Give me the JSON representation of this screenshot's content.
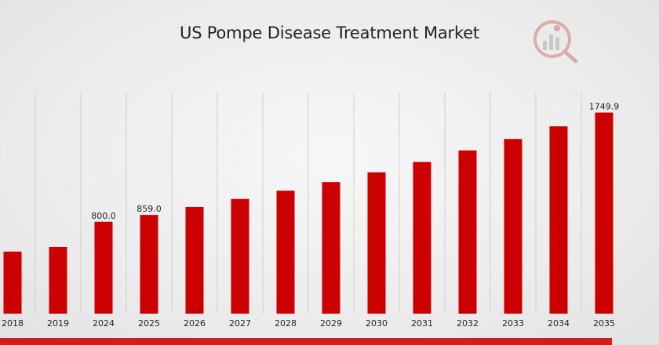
{
  "chart_data": {
    "type": "bar",
    "title": "US Pompe Disease Treatment Market",
    "xlabel": "",
    "ylabel": "",
    "categories": [
      "2018",
      "2019",
      "2024",
      "2025",
      "2026",
      "2027",
      "2028",
      "2029",
      "2030",
      "2031",
      "2032",
      "2033",
      "2034",
      "2035"
    ],
    "values": [
      540,
      580,
      800,
      859,
      928,
      998,
      1070,
      1145,
      1230,
      1320,
      1420,
      1520,
      1630,
      1749.9
    ],
    "data_labels": {
      "2024": "800.0",
      "2025": "859.0",
      "2035": "1749.9"
    },
    "ylim": [
      0,
      1800
    ],
    "grid": "vertical",
    "legend": "none"
  },
  "colors": {
    "bar": "#cc0000",
    "gridline": "#cfcfcf",
    "text": "#222222",
    "bottom_band": "#cc1f1f"
  },
  "logo": {
    "icon": "market-research-logo-icon"
  }
}
